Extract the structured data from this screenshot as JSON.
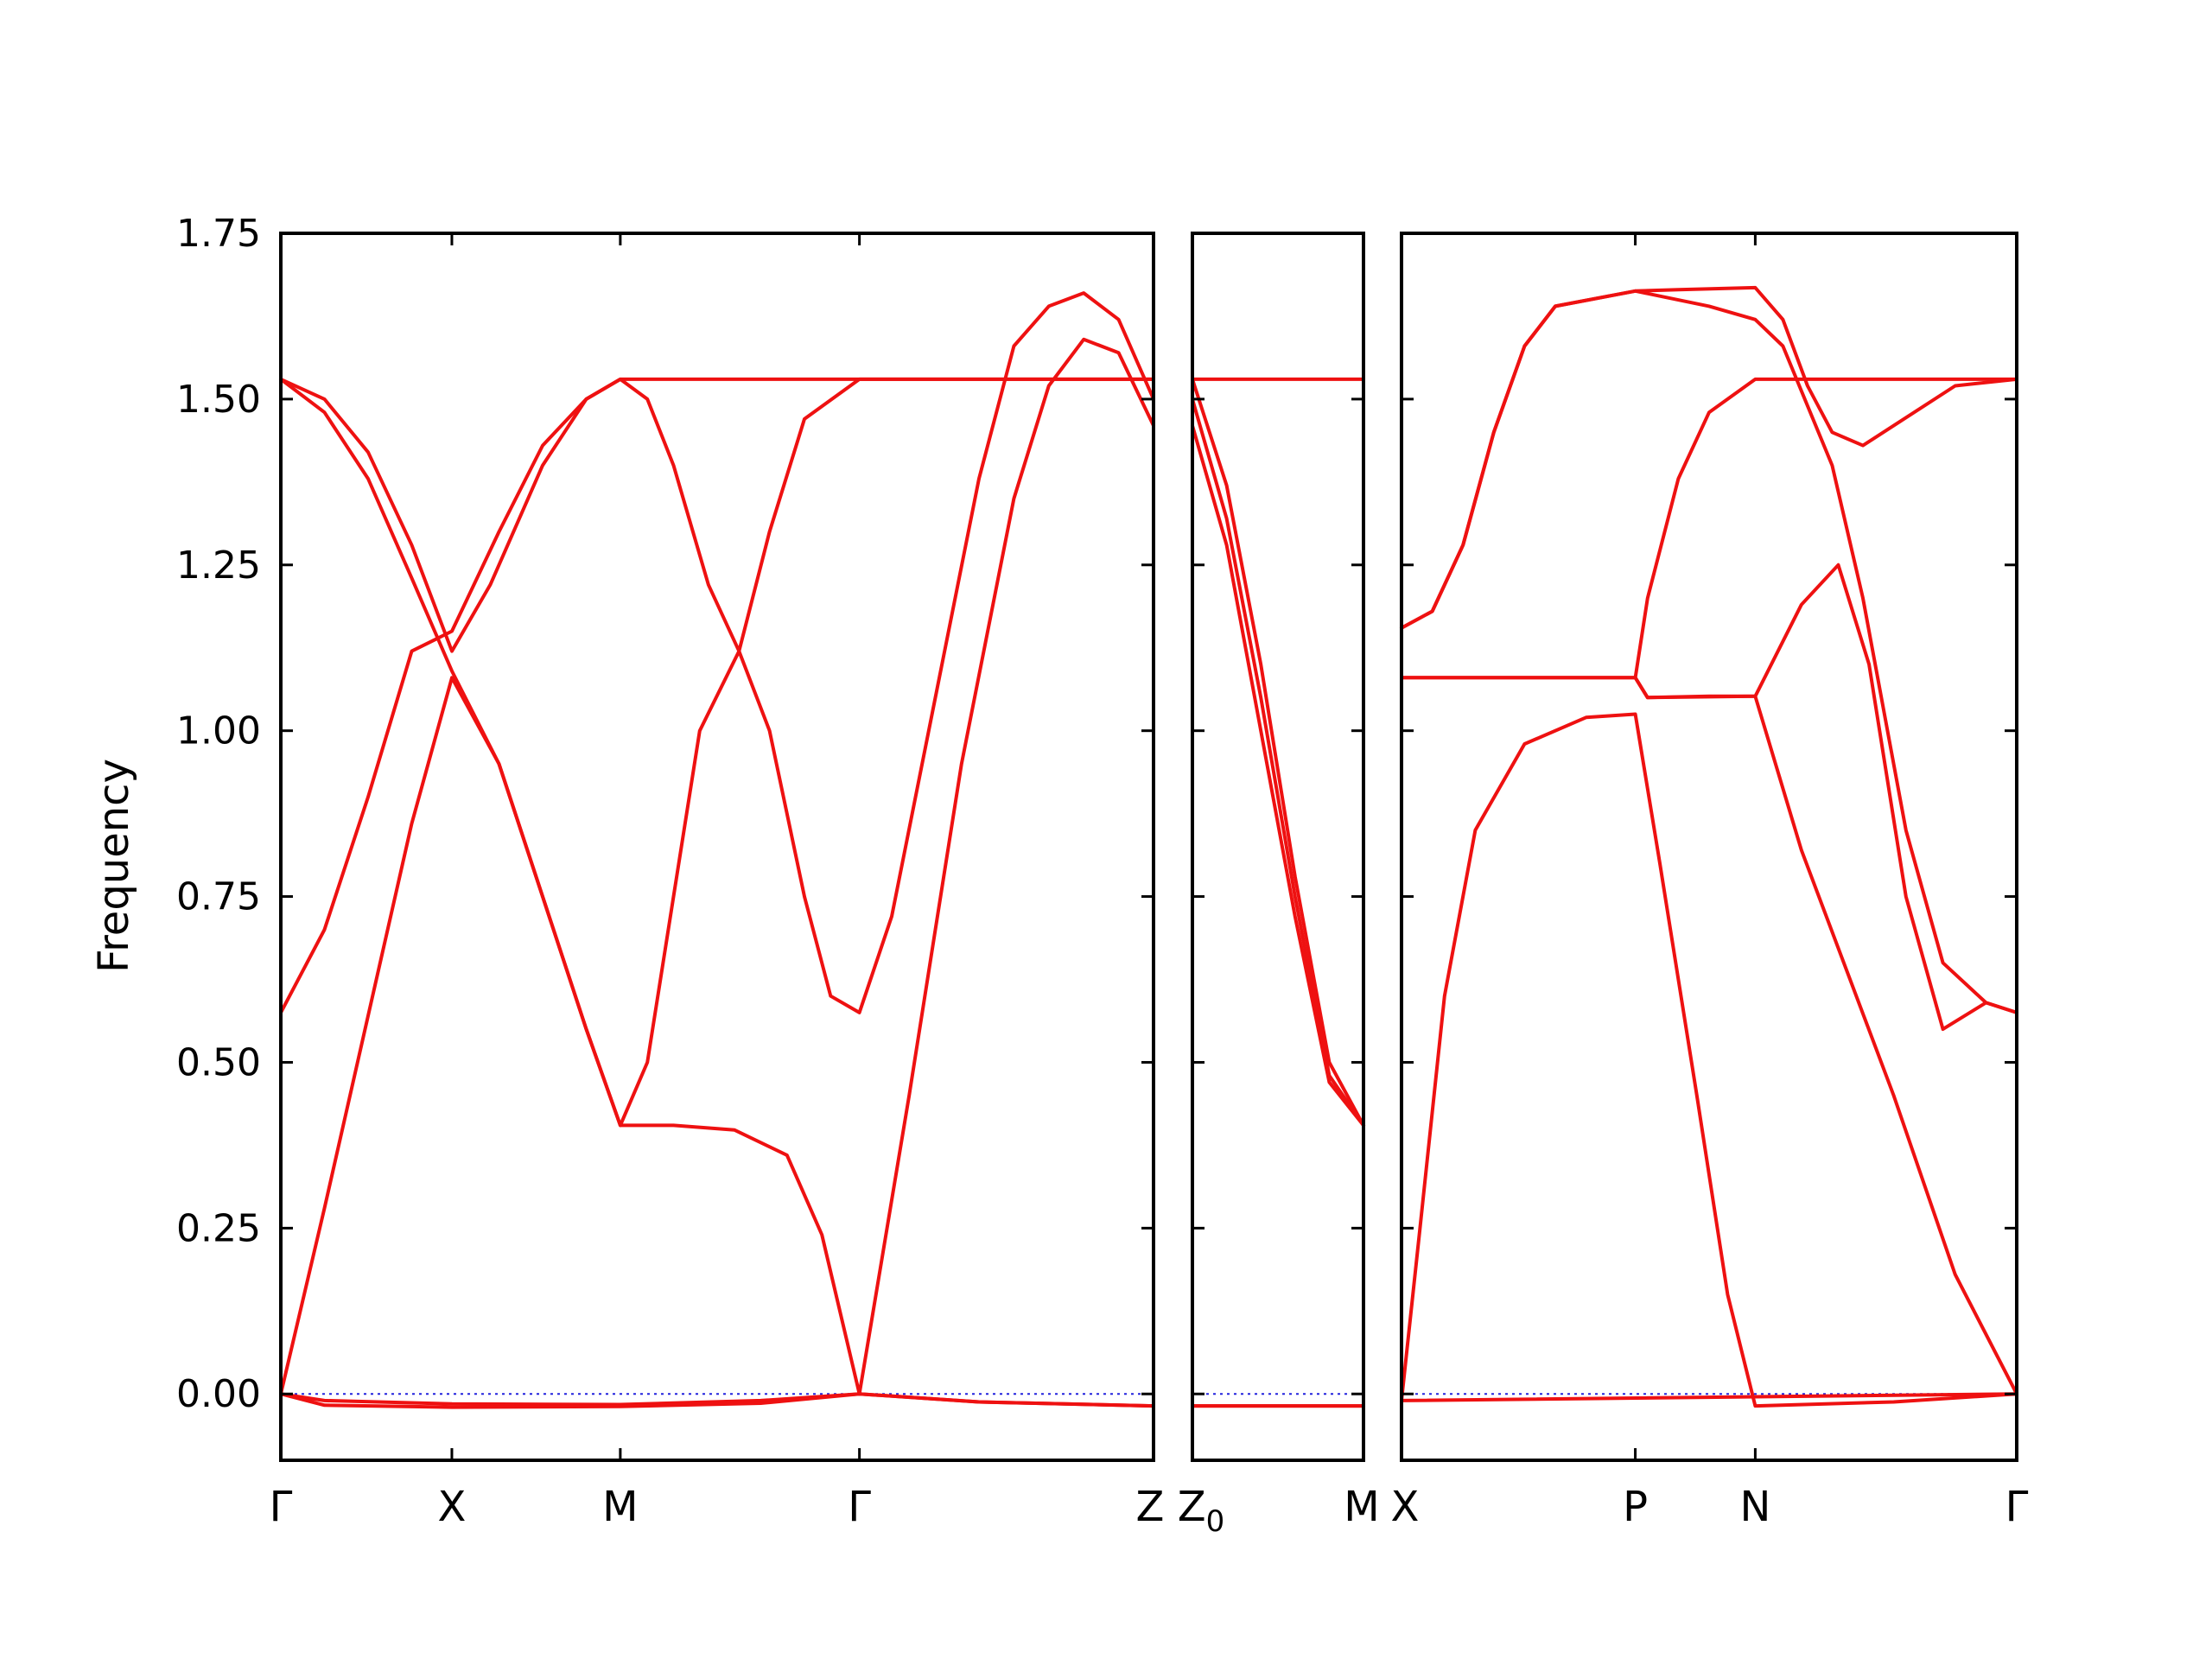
{
  "chart_data": {
    "type": "line",
    "title": "",
    "ylabel": "Frequency",
    "ylim": [
      -0.1,
      1.75
    ],
    "yticks": [
      "0.00",
      "0.25",
      "0.50",
      "0.75",
      "1.00",
      "1.25",
      "1.50",
      "1.75"
    ],
    "ytick_values": [
      0.0,
      0.25,
      0.5,
      0.75,
      1.0,
      1.25,
      1.5,
      1.75
    ],
    "grid": false,
    "band_color": "#ee1111",
    "zero_line_color": "#2222dd",
    "kpoint_labels": [
      {
        "label": "Γ",
        "segment": 0,
        "x": 0.0
      },
      {
        "label": "X",
        "segment": 0,
        "x": 0.196
      },
      {
        "label": "M",
        "segment": 0,
        "x": 0.389
      },
      {
        "label": "Γ",
        "segment": 0,
        "x": 0.663
      },
      {
        "label": "Z",
        "segment": 0,
        "x": 1.0
      },
      {
        "label": "Z",
        "label_sub": "0",
        "segment": 1,
        "x": 0.0
      },
      {
        "label": "M",
        "segment": 1,
        "x": 1.0
      },
      {
        "label": "X",
        "segment": 2,
        "x": 0.0
      },
      {
        "label": "P",
        "segment": 2,
        "x": 0.38
      },
      {
        "label": "N",
        "segment": 2,
        "x": 0.575
      },
      {
        "label": "Γ",
        "segment": 2,
        "x": 1.0
      }
    ],
    "segments": [
      {
        "path": "Γ-X-M-Γ-Z",
        "series": [
          {
            "points": [
              [
                0,
                0
              ],
              [
                0.05,
                -0.01
              ],
              [
                0.196,
                -0.015
              ],
              [
                0.389,
                -0.016
              ],
              [
                0.55,
                -0.01
              ],
              [
                0.663,
                0.0
              ],
              [
                0.8,
                -0.012
              ],
              [
                1.0,
                -0.018
              ]
            ]
          },
          {
            "points": [
              [
                0,
                0
              ],
              [
                0.05,
                -0.017
              ],
              [
                0.196,
                -0.02
              ],
              [
                0.389,
                -0.019
              ],
              [
                0.55,
                -0.014
              ],
              [
                0.663,
                0.0
              ],
              [
                0.8,
                -0.012
              ],
              [
                1.0,
                -0.018
              ]
            ]
          },
          {
            "points": [
              [
                0,
                0
              ],
              [
                0.05,
                0.28
              ],
              [
                0.1,
                0.57
              ],
              [
                0.15,
                0.86
              ],
              [
                0.196,
                1.08
              ],
              [
                0.25,
                0.95
              ],
              [
                0.3,
                0.75
              ],
              [
                0.35,
                0.55
              ],
              [
                0.389,
                0.405
              ],
              [
                0.45,
                0.405
              ],
              [
                0.52,
                0.398
              ],
              [
                0.58,
                0.36
              ],
              [
                0.62,
                0.24
              ],
              [
                0.663,
                0.0
              ],
              [
                0.72,
                0.45
              ],
              [
                0.78,
                0.95
              ],
              [
                0.84,
                1.35
              ],
              [
                0.88,
                1.52
              ],
              [
                0.92,
                1.59
              ],
              [
                0.96,
                1.57
              ],
              [
                1.0,
                1.46
              ]
            ]
          },
          {
            "points": [
              [
                0,
                0.575
              ],
              [
                0.05,
                0.7
              ],
              [
                0.1,
                0.9
              ],
              [
                0.15,
                1.12
              ],
              [
                0.196,
                1.15
              ],
              [
                0.25,
                1.3
              ],
              [
                0.3,
                1.43
              ],
              [
                0.35,
                1.5
              ],
              [
                0.389,
                1.53
              ],
              [
                0.663,
                1.53
              ],
              [
                1.0,
                1.53
              ]
            ]
          },
          {
            "points": [
              [
                0,
                1.53
              ],
              [
                0.05,
                1.48
              ],
              [
                0.1,
                1.38
              ],
              [
                0.15,
                1.23
              ],
              [
                0.196,
                1.09
              ],
              [
                0.25,
                0.95
              ],
              [
                0.3,
                0.75
              ],
              [
                0.35,
                0.55
              ],
              [
                0.389,
                0.405
              ],
              [
                0.42,
                0.5
              ],
              [
                0.45,
                0.75
              ],
              [
                0.48,
                1.0
              ],
              [
                0.525,
                1.12
              ],
              [
                0.56,
                1.0
              ],
              [
                0.6,
                0.75
              ],
              [
                0.63,
                0.6
              ],
              [
                0.663,
                0.575
              ],
              [
                0.7,
                0.72
              ],
              [
                0.75,
                1.05
              ],
              [
                0.8,
                1.38
              ],
              [
                0.84,
                1.58
              ],
              [
                0.88,
                1.64
              ],
              [
                0.92,
                1.66
              ],
              [
                0.96,
                1.62
              ],
              [
                1.0,
                1.5
              ]
            ]
          },
          {
            "points": [
              [
                0,
                1.53
              ],
              [
                0.05,
                1.5
              ],
              [
                0.1,
                1.42
              ],
              [
                0.15,
                1.28
              ],
              [
                0.196,
                1.12
              ],
              [
                0.24,
                1.22
              ],
              [
                0.3,
                1.4
              ],
              [
                0.35,
                1.5
              ],
              [
                0.389,
                1.53
              ],
              [
                0.42,
                1.5
              ],
              [
                0.45,
                1.4
              ],
              [
                0.49,
                1.22
              ],
              [
                0.525,
                1.12
              ],
              [
                0.56,
                1.3
              ],
              [
                0.6,
                1.47
              ],
              [
                0.663,
                1.53
              ],
              [
                1.0,
                1.53
              ]
            ]
          }
        ]
      },
      {
        "path": "Z0-M",
        "series": [
          {
            "points": [
              [
                0,
                -0.018
              ],
              [
                1.0,
                -0.018
              ]
            ]
          },
          {
            "points": [
              [
                0,
                -0.018
              ],
              [
                1.0,
                -0.018
              ]
            ]
          },
          {
            "points": [
              [
                0,
                1.53
              ],
              [
                1.0,
                1.53
              ]
            ]
          },
          {
            "points": [
              [
                0,
                1.53
              ],
              [
                0.2,
                1.37
              ],
              [
                0.4,
                1.1
              ],
              [
                0.6,
                0.78
              ],
              [
                0.8,
                0.5
              ],
              [
                1.0,
                0.405
              ]
            ]
          },
          {
            "points": [
              [
                0,
                1.5
              ],
              [
                0.2,
                1.32
              ],
              [
                0.4,
                1.05
              ],
              [
                0.6,
                0.75
              ],
              [
                0.8,
                0.48
              ],
              [
                1.0,
                0.405
              ]
            ]
          },
          {
            "points": [
              [
                0,
                1.46
              ],
              [
                0.2,
                1.28
              ],
              [
                0.4,
                1.0
              ],
              [
                0.6,
                0.72
              ],
              [
                0.8,
                0.47
              ],
              [
                1.0,
                0.405
              ]
            ]
          }
        ]
      },
      {
        "path": "X-P-N-Γ",
        "series": [
          {
            "points": [
              [
                0,
                -0.01
              ],
              [
                0.03,
                0.25
              ],
              [
                0.07,
                0.6
              ],
              [
                0.12,
                0.85
              ],
              [
                0.2,
                0.98
              ],
              [
                0.3,
                1.02
              ],
              [
                0.38,
                1.025
              ],
              [
                0.42,
                0.8
              ],
              [
                0.48,
                0.45
              ],
              [
                0.53,
                0.15
              ],
              [
                0.575,
                -0.018
              ],
              [
                0.8,
                -0.012
              ],
              [
                1.0,
                0.0
              ]
            ]
          },
          {
            "points": [
              [
                0,
                -0.01
              ],
              [
                1.0,
                0.0
              ]
            ]
          },
          {
            "points": [
              [
                0,
                1.08
              ],
              [
                0.38,
                1.08
              ],
              [
                0.4,
                1.05
              ],
              [
                0.5,
                1.052
              ],
              [
                0.575,
                1.052
              ],
              [
                0.65,
                0.82
              ],
              [
                0.8,
                0.45
              ],
              [
                0.9,
                0.18
              ],
              [
                1.0,
                0.0
              ]
            ]
          },
          {
            "points": [
              [
                0,
                1.08
              ],
              [
                0.38,
                1.08
              ],
              [
                0.4,
                1.05
              ],
              [
                0.575,
                1.052
              ],
              [
                0.65,
                1.19
              ],
              [
                0.71,
                1.25
              ],
              [
                0.76,
                1.1
              ],
              [
                0.82,
                0.75
              ],
              [
                0.88,
                0.55
              ],
              [
                0.95,
                0.59
              ],
              [
                1.0,
                0.575
              ]
            ]
          },
          {
            "points": [
              [
                0,
                1.155
              ],
              [
                0.05,
                1.18
              ],
              [
                0.1,
                1.28
              ],
              [
                0.15,
                1.45
              ],
              [
                0.2,
                1.58
              ],
              [
                0.25,
                1.64
              ],
              [
                0.38,
                1.663
              ],
              [
                0.5,
                1.64
              ],
              [
                0.575,
                1.62
              ],
              [
                0.62,
                1.58
              ],
              [
                0.66,
                1.49
              ],
              [
                0.7,
                1.4
              ],
              [
                0.75,
                1.2
              ],
              [
                0.82,
                0.85
              ],
              [
                0.88,
                0.65
              ],
              [
                0.95,
                0.59
              ],
              [
                1.0,
                0.575
              ]
            ]
          },
          {
            "points": [
              [
                0,
                1.155
              ],
              [
                0.05,
                1.18
              ],
              [
                0.1,
                1.28
              ],
              [
                0.15,
                1.45
              ],
              [
                0.2,
                1.58
              ],
              [
                0.25,
                1.64
              ],
              [
                0.38,
                1.663
              ],
              [
                0.45,
                1.665
              ],
              [
                0.575,
                1.668
              ],
              [
                0.62,
                1.62
              ],
              [
                0.66,
                1.52
              ],
              [
                0.7,
                1.45
              ],
              [
                0.75,
                1.43
              ],
              [
                0.8,
                1.46
              ],
              [
                0.9,
                1.52
              ],
              [
                1.0,
                1.53
              ]
            ]
          },
          {
            "points": [
              [
                0.38,
                1.08
              ],
              [
                0.4,
                1.2
              ],
              [
                0.45,
                1.38
              ],
              [
                0.5,
                1.48
              ],
              [
                0.575,
                1.53
              ],
              [
                1.0,
                1.53
              ]
            ]
          }
        ]
      }
    ]
  }
}
